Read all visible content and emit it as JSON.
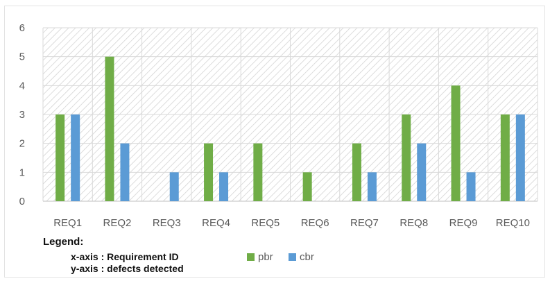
{
  "chart_data": {
    "type": "bar",
    "categories": [
      "REQ1",
      "REQ2",
      "REQ3",
      "REQ4",
      "REQ5",
      "REQ6",
      "REQ7",
      "REQ8",
      "REQ9",
      "REQ10"
    ],
    "series": [
      {
        "name": "pbr",
        "color": "#70ad47",
        "values": [
          3,
          5,
          0,
          2,
          2,
          1,
          2,
          3,
          4,
          3
        ]
      },
      {
        "name": "cbr",
        "color": "#5b9bd5",
        "values": [
          3,
          2,
          1,
          1,
          0,
          0,
          1,
          2,
          1,
          3
        ]
      }
    ],
    "ylim": [
      0,
      6
    ],
    "yticks": [
      0,
      1,
      2,
      3,
      4,
      5,
      6
    ],
    "grid": true,
    "plot_background": "diagonal-hatch",
    "legend": {
      "title": "Legend:",
      "x_desc": "x-axis : Requirement ID",
      "y_desc": "y-axis : defects detected",
      "placement": "bottom-left"
    }
  }
}
